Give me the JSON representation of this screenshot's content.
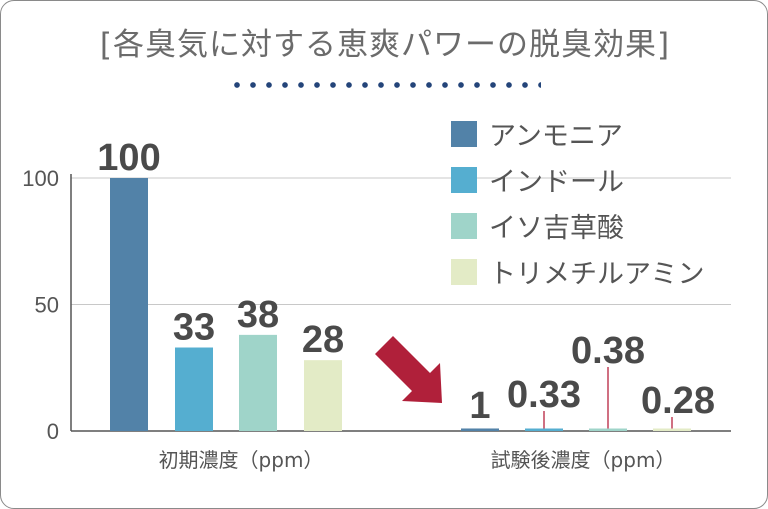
{
  "title": "[各臭気に対する恵爽パワーの脱臭効果]",
  "colors": {
    "series": [
      "#5282a8",
      "#55aed0",
      "#9fd4c9",
      "#e3ebc6"
    ],
    "arrow": "#b0203a",
    "leader": "#c04058",
    "dots": "#24457a"
  },
  "chart_data": {
    "type": "bar",
    "categories": [
      "初期濃度（ppm）",
      "試験後濃度（ppm）"
    ],
    "series": [
      {
        "name": "アンモニア",
        "values": [
          100,
          1
        ],
        "labels": [
          "100",
          "1"
        ]
      },
      {
        "name": "インドール",
        "values": [
          33,
          0.33
        ],
        "labels": [
          "33",
          "0.33"
        ]
      },
      {
        "name": "イソ吉草酸",
        "values": [
          38,
          0.38
        ],
        "labels": [
          "38",
          "0.38"
        ]
      },
      {
        "name": "トリメチルアミン",
        "values": [
          28,
          0.28
        ],
        "labels": [
          "28",
          "0.28"
        ]
      }
    ],
    "yticks": [
      0,
      50,
      100
    ],
    "ylim": [
      0,
      100
    ],
    "grid": true,
    "legend": "top-right"
  }
}
